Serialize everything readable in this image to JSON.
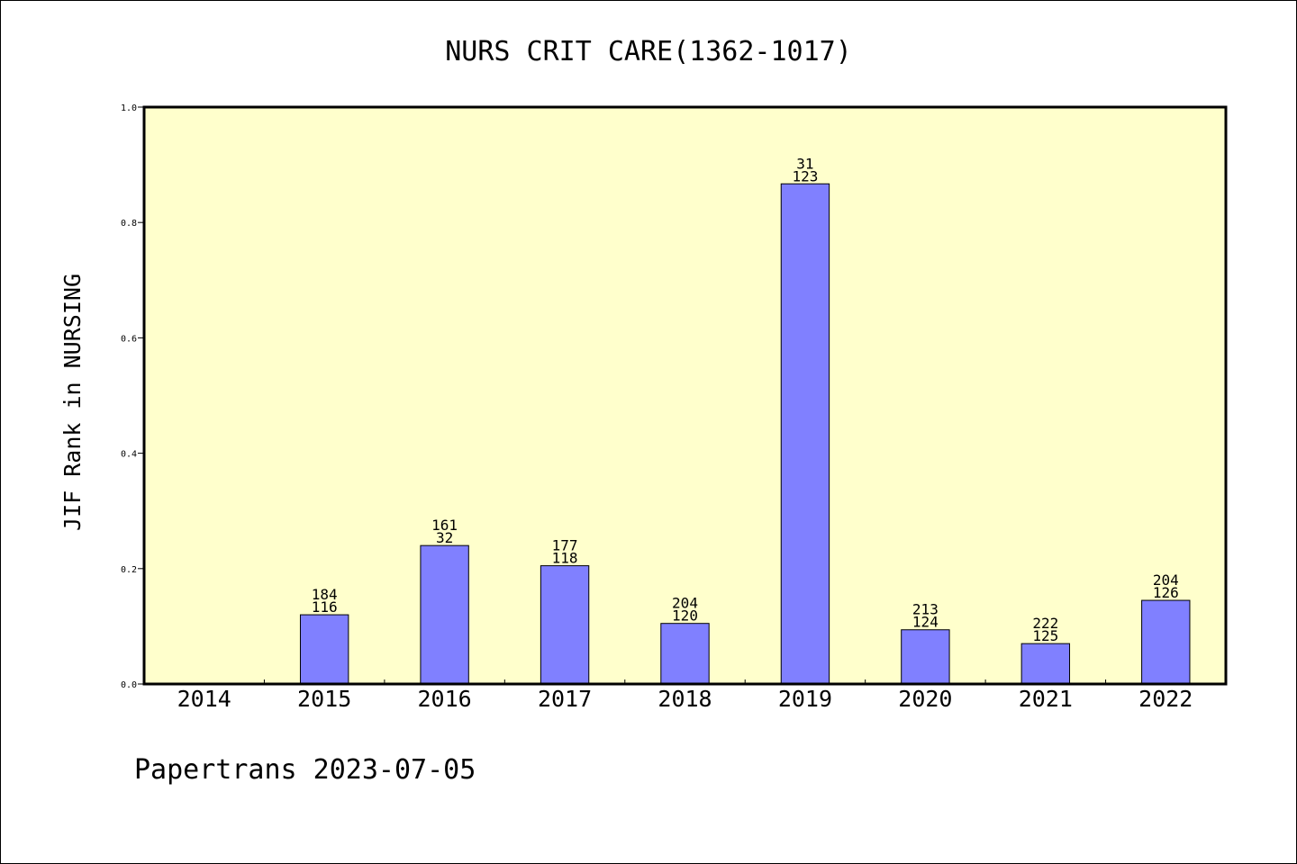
{
  "chart_data": {
    "type": "bar",
    "title": "NURS CRIT CARE(1362-1017)",
    "xlabel": "",
    "ylabel": "JIF Rank in NURSING",
    "ylim": [
      0,
      1.0
    ],
    "yticks": [
      "0.0",
      "0.2",
      "0.4",
      "0.6",
      "0.8",
      "1.0"
    ],
    "categories": [
      "2014",
      "2015",
      "2016",
      "2017",
      "2018",
      "2019",
      "2020",
      "2021",
      "2022"
    ],
    "values": [
      null,
      0.12,
      0.24,
      0.205,
      0.105,
      0.867,
      0.094,
      0.07,
      0.145
    ],
    "labels_top": [
      "",
      "184",
      "161",
      "177",
      "204",
      "31",
      "213",
      "222",
      "204"
    ],
    "labels_bottom": [
      "",
      "116",
      "32",
      "118",
      "120",
      "123",
      "124",
      "125",
      "126"
    ],
    "grid": false,
    "colors": {
      "bar_fill": "#8080ff",
      "plot_background": "#ffffcc",
      "axis": "#000000"
    }
  },
  "footer": {
    "text": "Papertrans 2023-07-05"
  }
}
